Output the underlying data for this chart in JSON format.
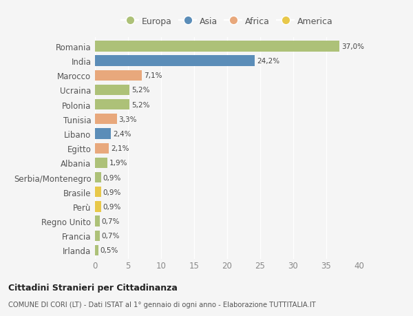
{
  "countries": [
    "Romania",
    "India",
    "Marocco",
    "Ucraina",
    "Polonia",
    "Tunisia",
    "Libano",
    "Egitto",
    "Albania",
    "Serbia/Montenegro",
    "Brasile",
    "Perù",
    "Regno Unito",
    "Francia",
    "Irlanda"
  ],
  "values": [
    37.0,
    24.2,
    7.1,
    5.2,
    5.2,
    3.3,
    2.4,
    2.1,
    1.9,
    0.9,
    0.9,
    0.9,
    0.7,
    0.7,
    0.5
  ],
  "labels": [
    "37,0%",
    "24,2%",
    "7,1%",
    "5,2%",
    "5,2%",
    "3,3%",
    "2,4%",
    "2,1%",
    "1,9%",
    "0,9%",
    "0,9%",
    "0,9%",
    "0,7%",
    "0,7%",
    "0,5%"
  ],
  "colors": [
    "#adc178",
    "#5b8db8",
    "#e8a87c",
    "#adc178",
    "#adc178",
    "#e8a87c",
    "#5b8db8",
    "#e8a87c",
    "#adc178",
    "#adc178",
    "#e8c84a",
    "#e8c84a",
    "#adc178",
    "#adc178",
    "#adc178"
  ],
  "continent_colors": {
    "Europa": "#adc178",
    "Asia": "#5b8db8",
    "Africa": "#e8a87c",
    "America": "#e8c84a"
  },
  "xlim": [
    0,
    40
  ],
  "xticks": [
    0,
    5,
    10,
    15,
    20,
    25,
    30,
    35,
    40
  ],
  "title_bold": "Cittadini Stranieri per Cittadinanza",
  "subtitle": "COMUNE DI CORI (LT) - Dati ISTAT al 1° gennaio di ogni anno - Elaborazione TUTTITALIA.IT",
  "background_color": "#f5f5f5",
  "plot_background": "#f5f5f5",
  "grid_color": "#ffffff",
  "bar_height": 0.72
}
